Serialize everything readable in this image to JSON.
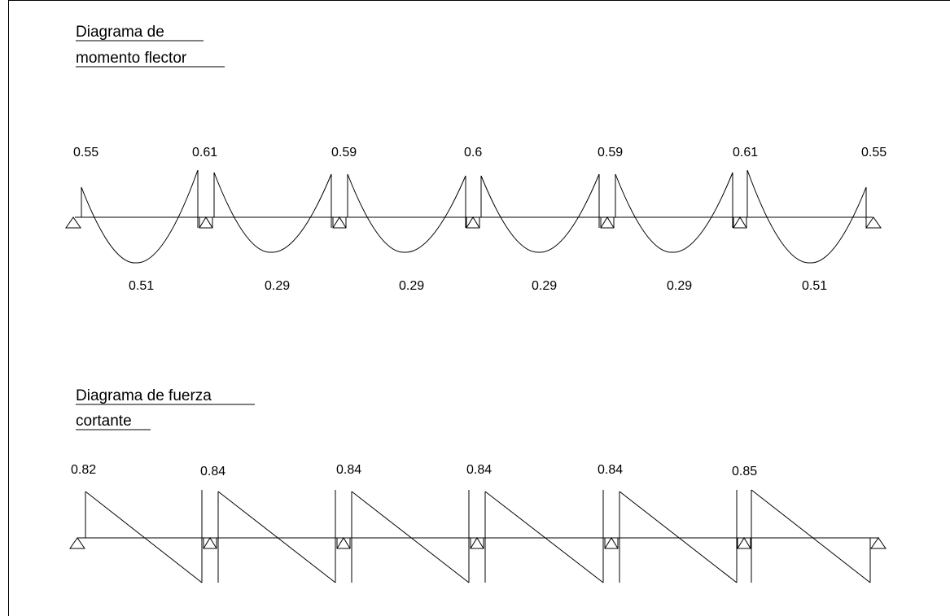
{
  "moment_diagram": {
    "title_line1": "Diagrama de",
    "title_line2": "momento flector",
    "support_labels": [
      "0.55",
      "0.61",
      "0.59",
      "0.6",
      "0.59",
      "0.61",
      "0.55"
    ],
    "span_labels": [
      "0.51",
      "0.29",
      "0.29",
      "0.29",
      "0.29",
      "0.51"
    ]
  },
  "shear_diagram": {
    "title_line1": "Diagrama de fuerza",
    "title_line2": "cortante",
    "support_labels": [
      "0.82",
      "0.84",
      "0.84",
      "0.84",
      "0.84",
      "0.85"
    ]
  },
  "colors": {
    "line": "#000000",
    "background": "#ffffff"
  }
}
